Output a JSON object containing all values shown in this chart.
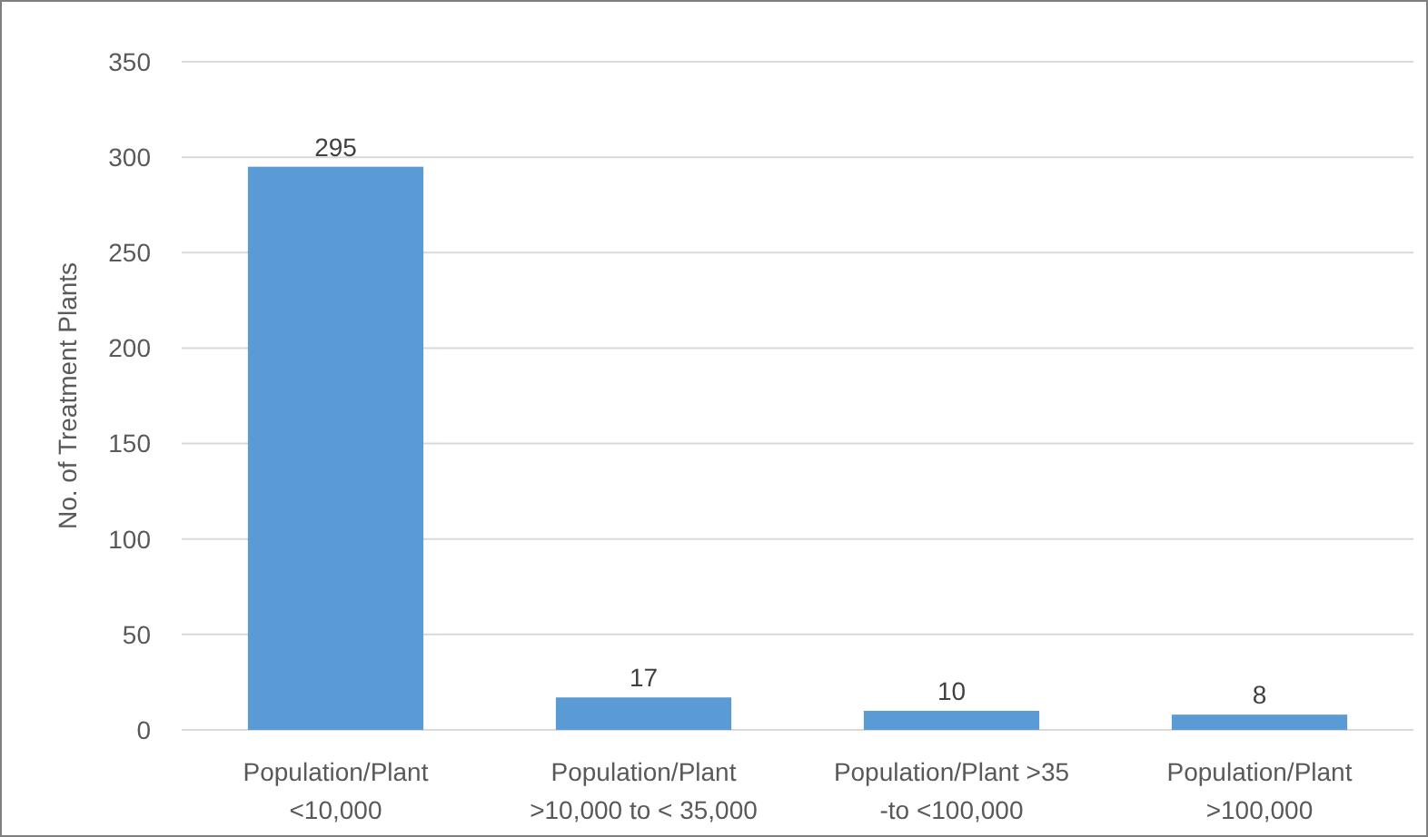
{
  "chart_data": {
    "type": "bar",
    "ylabel": "No. of Treatment  Plants",
    "categories": [
      "Population/Plant <10,000",
      "Population/Plant >10,000 to < 35,000",
      "Population/Plant >35 -to <100,000",
      "Population/Plant >100,000"
    ],
    "values": [
      295,
      17,
      10,
      8
    ],
    "color": "#5b9bd5",
    "ylim": [
      0,
      350
    ],
    "yticks": [
      0,
      50,
      100,
      150,
      200,
      250,
      300,
      350
    ],
    "grid": "y",
    "data_labels": true
  }
}
